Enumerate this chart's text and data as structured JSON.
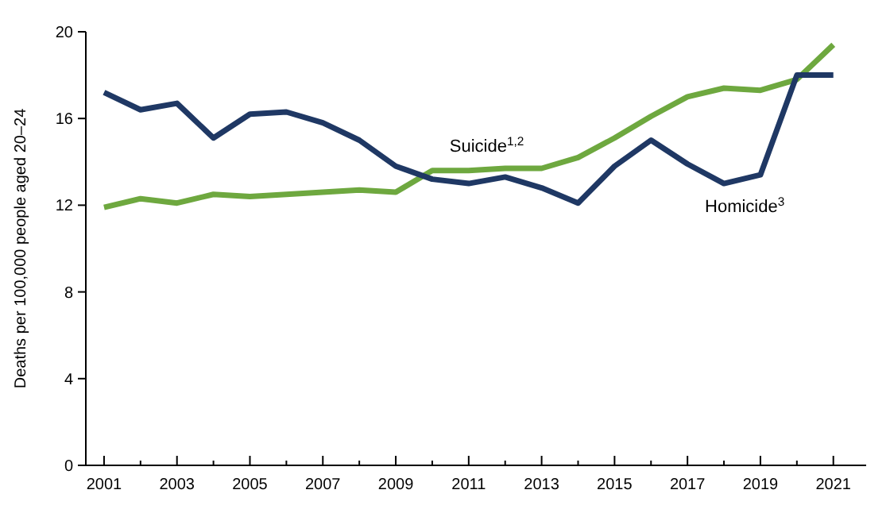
{
  "chart_data": {
    "type": "line",
    "ylabel": "Deaths per 100,000 people aged 20–24",
    "x": [
      2001,
      2002,
      2003,
      2004,
      2005,
      2006,
      2007,
      2008,
      2009,
      2010,
      2011,
      2012,
      2013,
      2014,
      2015,
      2016,
      2017,
      2018,
      2019,
      2020,
      2021
    ],
    "xlim": [
      2000.5,
      2021.9
    ],
    "xticks": [
      2001,
      {
        "value": 2002,
        "label": null
      },
      2003,
      {
        "value": 2004,
        "label": null
      },
      2005,
      {
        "value": 2006,
        "label": null
      },
      2007,
      {
        "value": 2008,
        "label": null
      },
      2009,
      {
        "value": 2010,
        "label": null
      },
      2011,
      {
        "value": 2012,
        "label": null
      },
      2013,
      {
        "value": 2014,
        "label": null
      },
      2015,
      {
        "value": 2016,
        "label": null
      },
      2017,
      {
        "value": 2018,
        "label": null
      },
      2019,
      {
        "value": 2020,
        "label": null
      },
      2021
    ],
    "ylim": [
      0,
      20
    ],
    "yticks": [
      0,
      4,
      8,
      12,
      16,
      20
    ],
    "grid": false,
    "legend": false,
    "marker": "none",
    "line_style": "solid",
    "series": [
      {
        "name": "Suicide$^{1,2}$",
        "color": "#6ea83f",
        "values": [
          11.9,
          12.3,
          12.1,
          12.5,
          12.4,
          12.5,
          12.6,
          12.7,
          12.6,
          13.6,
          13.6,
          13.7,
          13.7,
          14.2,
          15.1,
          16.1,
          17.0,
          17.4,
          17.3,
          17.8,
          19.4
        ]
      },
      {
        "name": "Homicide$^{3}$",
        "color": "#1f3864",
        "values": [
          17.2,
          16.4,
          16.7,
          15.1,
          16.2,
          16.3,
          15.8,
          15.0,
          13.8,
          13.2,
          13.0,
          13.3,
          12.8,
          12.1,
          13.8,
          15.0,
          13.9,
          13.0,
          13.4,
          18.0,
          18.0
        ]
      }
    ]
  }
}
